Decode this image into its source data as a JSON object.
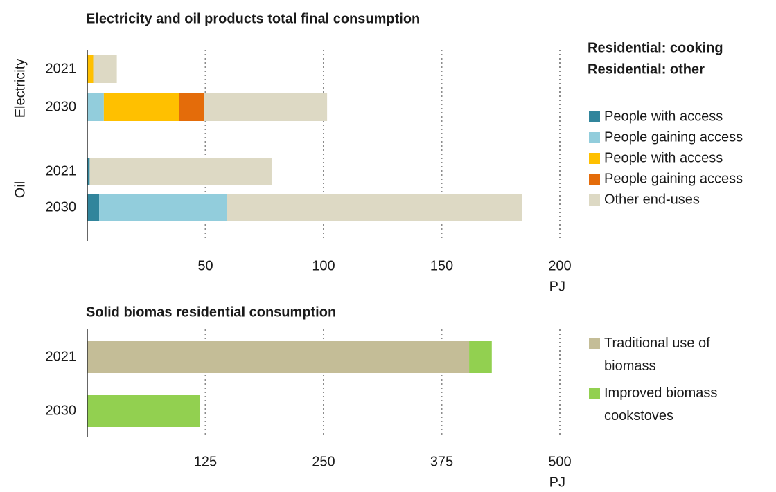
{
  "chart_data": [
    {
      "type": "bar",
      "orientation": "horizontal",
      "stacked": true,
      "title": "Electricity and oil products total final consumption",
      "category_groups": [
        {
          "name": "Electricity",
          "categories": [
            "2021",
            "2030"
          ]
        },
        {
          "name": "Oil",
          "categories": [
            "2021",
            "2030"
          ]
        }
      ],
      "series_groups": [
        {
          "name": "Residential: cooking",
          "series": [
            {
              "name": "People with access",
              "color": "#31859c",
              "values": [
                0,
                0,
                1,
                5
              ]
            },
            {
              "name": "People gaining access",
              "color": "#92cddc",
              "values": [
                0,
                7,
                0,
                54
              ]
            }
          ]
        },
        {
          "name": "Residential: other",
          "series": [
            {
              "name": "People with access",
              "color": "#ffc000",
              "values": [
                2.5,
                32,
                0,
                0
              ]
            },
            {
              "name": "People gaining access",
              "color": "#e46c0a",
              "values": [
                0,
                10.5,
                0,
                0
              ]
            }
          ]
        },
        {
          "series": [
            {
              "name": "Other end-uses",
              "color": "#ddd9c4",
              "values": [
                10,
                52,
                77,
                125
              ]
            }
          ]
        }
      ],
      "xlim": [
        0,
        200
      ],
      "xticks": [
        50,
        100,
        150,
        200
      ],
      "xlabel": "PJ",
      "grid": true
    },
    {
      "type": "bar",
      "orientation": "horizontal",
      "stacked": true,
      "title": "Solid biomas residential consumption",
      "categories": [
        "2021",
        "2030"
      ],
      "series": [
        {
          "name": "Traditional use of biomass",
          "color": "#c4bd97",
          "values": [
            404,
            0
          ]
        },
        {
          "name": "Improved biomass cookstoves",
          "color": "#92d050",
          "values": [
            24,
            119
          ]
        }
      ],
      "xlim": [
        0,
        500
      ],
      "xticks": [
        125,
        250,
        375,
        500
      ],
      "xlabel": "PJ",
      "grid": true
    }
  ]
}
